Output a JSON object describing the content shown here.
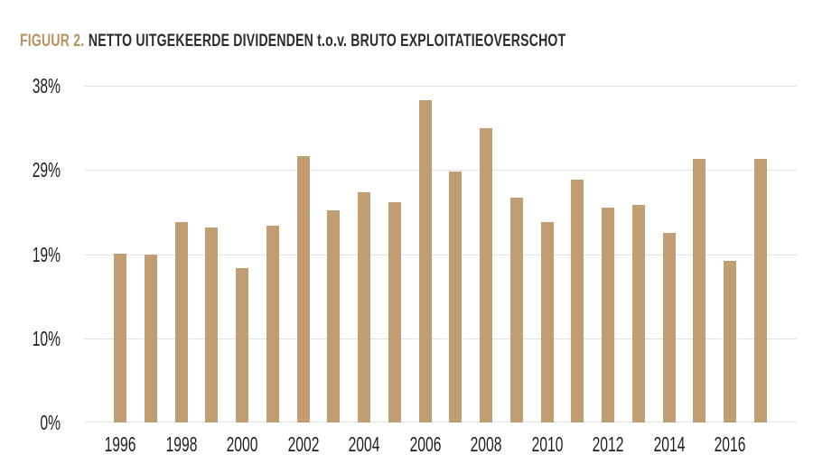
{
  "figure": {
    "label": "FIGUUR 2.",
    "title": "NETTO UITGEKEERDE DIVIDENDEN t.o.v. BRUTO EXPLOITATIEOVERSCHOT"
  },
  "chart_data": {
    "type": "bar",
    "title": "FIGUUR 2. NETTO UITGEKEERDE DIVIDENDEN t.o.v. BRUTO EXPLOITATIEOVERSCHOT",
    "unit": "%",
    "categories": [
      "1996",
      "1997",
      "1998",
      "1999",
      "2000",
      "2001",
      "2002",
      "2003",
      "2004",
      "2005",
      "2006",
      "2007",
      "2008",
      "2009",
      "2010",
      "2011",
      "2012",
      "2013",
      "2014",
      "2015",
      "2016",
      "2017"
    ],
    "values": [
      19.1,
      18.9,
      22.6,
      22.0,
      17.4,
      22.2,
      30.1,
      23.9,
      26.0,
      24.9,
      36.4,
      28.3,
      33.2,
      25.4,
      22.6,
      27.4,
      24.2,
      24.6,
      21.4,
      29.7,
      18.2,
      29.8
    ],
    "ylim": [
      0,
      38
    ],
    "yticks": [
      {
        "value": 38,
        "label": "38%"
      },
      {
        "value": 28.5,
        "label": "29%"
      },
      {
        "value": 19,
        "label": "19%"
      },
      {
        "value": 9.5,
        "label": "10%"
      },
      {
        "value": 0,
        "label": "0%"
      }
    ],
    "xtick_labels": [
      "1996",
      "1998",
      "2000",
      "2002",
      "2004",
      "2006",
      "2008",
      "2010",
      "2012",
      "2014",
      "2016"
    ],
    "grid": true,
    "legend": "none",
    "colors": {
      "bar": "#c09d72",
      "accent": "#b9935f",
      "title_text": "#2d2d2d",
      "axis_text": "#1f1f1f",
      "gridline": "#e3e3e3",
      "background": "#ffffff"
    }
  }
}
